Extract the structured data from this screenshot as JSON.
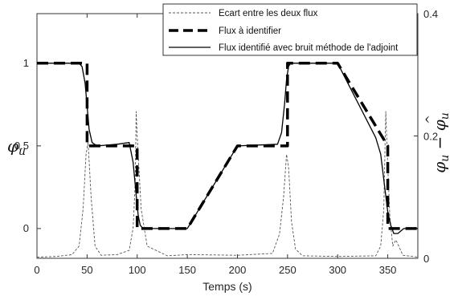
{
  "chart_data": {
    "type": "line",
    "xlabel": "Temps (s)",
    "ylabel_left": "φu",
    "ylabel_right": "φu − φ̂u",
    "xlim": [
      0,
      380
    ],
    "ylim_left": [
      -0.18,
      1.3
    ],
    "ylim_right": [
      0,
      0.4
    ],
    "x_ticks": [
      0,
      50,
      100,
      150,
      200,
      250,
      300,
      350
    ],
    "y_ticks_left": [
      0,
      0.5,
      1
    ],
    "y_ticks_right": [
      0,
      0.2,
      0.4
    ],
    "grid": false,
    "legend_position": "top-right",
    "series": [
      {
        "name": "Ecart entre les deux flux",
        "axis": "right",
        "style": "dashed-thin",
        "color": "#555555",
        "x": [
          0,
          20,
          35,
          42,
          46,
          49,
          51,
          54,
          58,
          64,
          80,
          92,
          96,
          98,
          99,
          100,
          102,
          104,
          110,
          130,
          150,
          200,
          235,
          242,
          246,
          249,
          251,
          254,
          258,
          265,
          300,
          338,
          343,
          346,
          348,
          350,
          352,
          355,
          358,
          361,
          365,
          380
        ],
        "values": [
          0.002,
          0.003,
          0.006,
          0.02,
          0.08,
          0.17,
          0.19,
          0.1,
          0.02,
          0.005,
          0.006,
          0.013,
          0.05,
          0.12,
          0.24,
          0.2,
          0.14,
          0.08,
          0.02,
          0.004,
          0.006,
          0.005,
          0.008,
          0.04,
          0.1,
          0.17,
          0.15,
          0.06,
          0.015,
          0.004,
          0.003,
          0.004,
          0.02,
          0.08,
          0.24,
          0.15,
          0.07,
          0.02,
          0.03,
          0.02,
          0.005,
          0.002
        ]
      },
      {
        "name": "Flux à identifier",
        "axis": "left",
        "style": "dashed-thick",
        "color": "#000000",
        "x": [
          0,
          50,
          50,
          100,
          100,
          150,
          200,
          250,
          250,
          300,
          350,
          350,
          380
        ],
        "values": [
          1,
          1,
          0.5,
          0.5,
          0,
          0,
          0.5,
          0.5,
          1,
          1,
          0.5,
          0,
          0
        ]
      },
      {
        "name": "Flux identifié avec bruit méthode de l'adjoint",
        "axis": "left",
        "style": "solid",
        "color": "#000000",
        "x": [
          0,
          42,
          45,
          48,
          50,
          52,
          55,
          60,
          80,
          92,
          96,
          99,
          101,
          103,
          106,
          110,
          150,
          200,
          240,
          244,
          247,
          249,
          251,
          253,
          256,
          262,
          300,
          338,
          343,
          347,
          350,
          353,
          356,
          360,
          366,
          380
        ],
        "values": [
          1,
          1,
          0.98,
          0.88,
          0.74,
          0.6,
          0.52,
          0.5,
          0.51,
          0.52,
          0.4,
          0.2,
          0.08,
          0.02,
          0.0,
          0.0,
          0.0,
          0.5,
          0.51,
          0.58,
          0.75,
          0.9,
          0.98,
          1.0,
          1.0,
          1.0,
          1.0,
          0.55,
          0.45,
          0.25,
          0.1,
          0.02,
          -0.03,
          -0.03,
          0.0,
          0.0
        ]
      }
    ]
  }
}
